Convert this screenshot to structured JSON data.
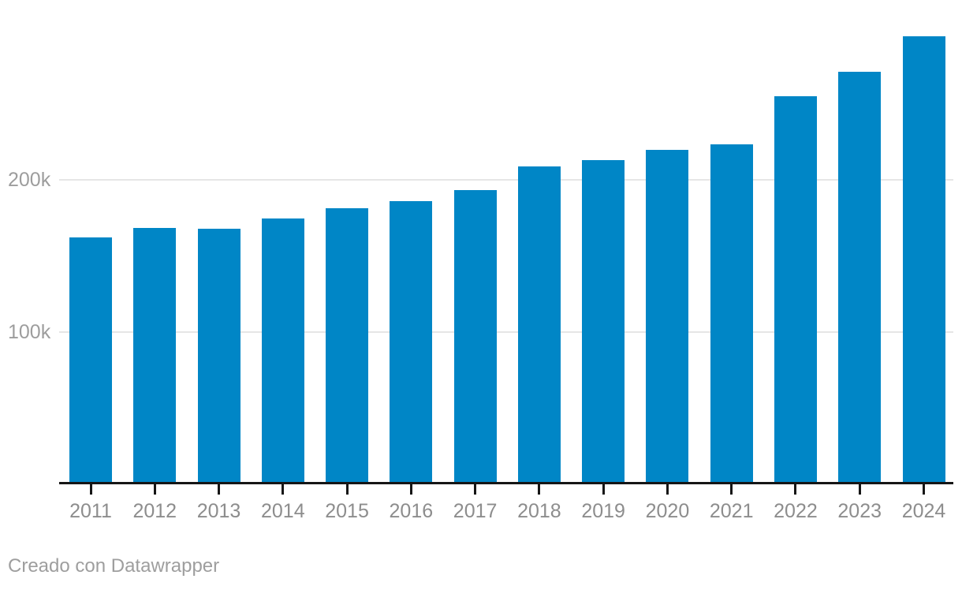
{
  "chart_data": {
    "type": "bar",
    "categories": [
      "2011",
      "2012",
      "2013",
      "2014",
      "2015",
      "2016",
      "2017",
      "2018",
      "2019",
      "2020",
      "2021",
      "2022",
      "2023",
      "2024"
    ],
    "values": [
      161900,
      168200,
      167700,
      174500,
      181200,
      185900,
      193200,
      208900,
      213000,
      219800,
      223400,
      255200,
      271400,
      294300
    ],
    "title": "",
    "xlabel": "",
    "ylabel": "",
    "ylim": [
      0,
      318000
    ],
    "yticks": [
      {
        "value": 100000,
        "label": "100k"
      },
      {
        "value": 200000,
        "label": "200k"
      }
    ],
    "grid": "horizontal",
    "legend": "none",
    "bar_color": "#0086c6"
  },
  "footer": {
    "credit": "Creado con Datawrapper"
  },
  "colors": {
    "background": "#ffffff",
    "bar": "#0086c6",
    "gridline": "#e6e6e6",
    "axis_line": "#161616",
    "tick_mark": "#161616",
    "x_tick_label": "#8d8d8d",
    "y_tick_label": "#9d9d9d",
    "credit_text": "#9e9e9e"
  }
}
